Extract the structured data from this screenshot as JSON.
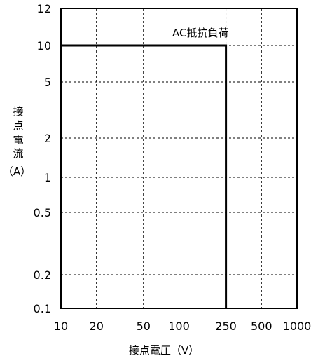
{
  "chart_data": {
    "type": "line",
    "xlabel": "接点電圧（V）",
    "ylabel_chars": [
      "接",
      "点",
      "電",
      "流"
    ],
    "ylabel_unit": "（A）",
    "x_scale": "log",
    "y_scale": "log-like (custom)",
    "xlim": [
      10,
      1000
    ],
    "ylim": [
      0.1,
      12
    ],
    "x_ticks": [
      10,
      20,
      50,
      100,
      250,
      500,
      1000
    ],
    "x_tick_labels": [
      "10",
      "20",
      "50",
      "100",
      "250",
      "500",
      "1000"
    ],
    "y_ticks": [
      0.1,
      0.2,
      0.5,
      1,
      2,
      5,
      10,
      12
    ],
    "y_tick_labels": [
      "0.1",
      "0.2",
      "0.5",
      "1",
      "2",
      "5",
      "10",
      "12"
    ],
    "grid": true,
    "series": [
      {
        "name": "AC抵抗負荷",
        "x": [
          10,
          250,
          250
        ],
        "y": [
          10,
          10,
          0.1
        ]
      }
    ]
  }
}
